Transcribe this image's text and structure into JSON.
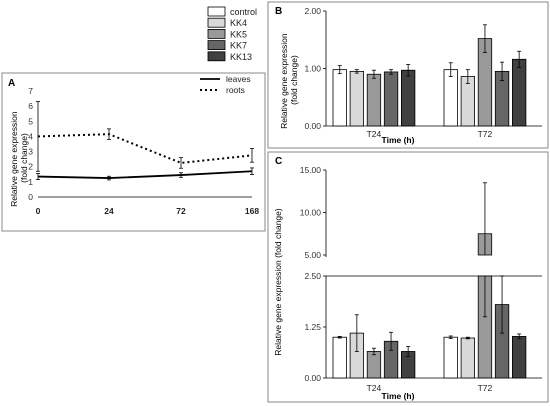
{
  "legend": [
    {
      "name": "control",
      "color": "#ffffff"
    },
    {
      "name": "KK4",
      "color": "#d9d9d9"
    },
    {
      "name": "KK5",
      "color": "#999999"
    },
    {
      "name": "KK7",
      "color": "#666666"
    },
    {
      "name": "KK13",
      "color": "#404040"
    }
  ],
  "chart_data": [
    {
      "panel": "A",
      "type": "line",
      "ylabel": "Relative gene expression\n(fold change)",
      "xlabel": "",
      "x": [
        0,
        24,
        72,
        168
      ],
      "x_tick_labels": [
        "0",
        "24",
        "72",
        "168"
      ],
      "y_tick_labels": [
        "0",
        "1",
        "2",
        "3",
        "4",
        "5",
        "6",
        "7"
      ],
      "ylim": [
        0,
        7
      ],
      "series": [
        {
          "name": "leaves",
          "style": "solid",
          "values": [
            1.35,
            1.25,
            1.45,
            1.7
          ],
          "errors": [
            0.2,
            0.12,
            0.15,
            0.22
          ]
        },
        {
          "name": "roots",
          "style": "dotted",
          "values": [
            4.0,
            4.15,
            2.25,
            2.75
          ],
          "errors": [
            2.3,
            0.35,
            0.35,
            0.45
          ]
        }
      ]
    },
    {
      "panel": "B",
      "type": "bar",
      "ylabel": "Relative gene expression\n(fold change)",
      "xlabel": "Time (h)",
      "categories": [
        "T24",
        "T72"
      ],
      "y_tick_labels": [
        "0.00",
        "1.00",
        "2.00"
      ],
      "ylim": [
        0,
        2
      ],
      "series": [
        {
          "name": "control",
          "values": [
            0.98,
            0.98
          ],
          "errors": [
            0.07,
            0.12
          ]
        },
        {
          "name": "KK4",
          "values": [
            0.95,
            0.86
          ],
          "errors": [
            0.03,
            0.12
          ]
        },
        {
          "name": "KK5",
          "values": [
            0.9,
            1.52
          ],
          "errors": [
            0.07,
            0.24
          ]
        },
        {
          "name": "KK7",
          "values": [
            0.94,
            0.95
          ],
          "errors": [
            0.04,
            0.16
          ]
        },
        {
          "name": "KK13",
          "values": [
            0.97,
            1.16
          ],
          "errors": [
            0.1,
            0.14
          ]
        }
      ]
    },
    {
      "panel": "C",
      "type": "bar",
      "ylabel": "Relative gene expression (fold change)",
      "xlabel": "Time (h)",
      "categories": [
        "T24",
        "T72"
      ],
      "y_tick_labels_lower": [
        "0.00",
        "1.25",
        "2.50"
      ],
      "y_tick_labels_upper": [
        "5.00",
        "10.00",
        "15.00"
      ],
      "ylim_lower": [
        0,
        2.5
      ],
      "ylim_upper": [
        5,
        15
      ],
      "broken_axis": true,
      "series": [
        {
          "name": "control",
          "values": [
            1.0,
            1.0
          ],
          "errors": [
            0.02,
            0.03
          ]
        },
        {
          "name": "KK4",
          "values": [
            1.1,
            0.98
          ],
          "errors": [
            0.45,
            0.02
          ]
        },
        {
          "name": "KK5",
          "values": [
            0.65,
            7.5
          ],
          "errors": [
            0.08,
            6.0
          ]
        },
        {
          "name": "KK7",
          "values": [
            0.9,
            1.8
          ],
          "errors": [
            0.22,
            0.7
          ]
        },
        {
          "name": "KK13",
          "values": [
            0.65,
            1.02
          ],
          "errors": [
            0.12,
            0.06
          ]
        }
      ]
    }
  ]
}
